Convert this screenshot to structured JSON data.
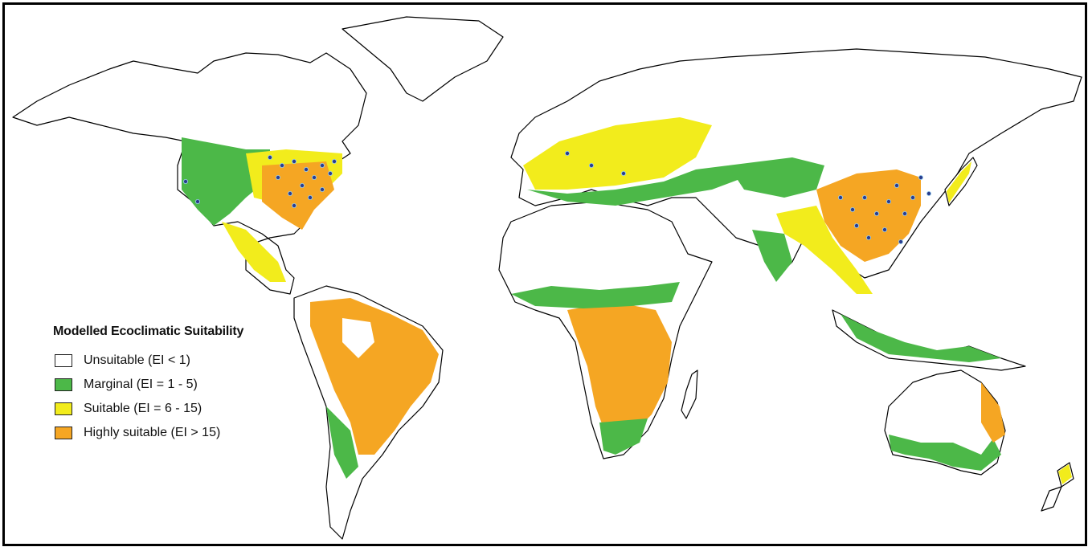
{
  "legend": {
    "title": "Modelled Ecoclimatic Suitability",
    "items": [
      {
        "label": "Unsuitable  (EI < 1)",
        "color": "#ffffff"
      },
      {
        "label": "Marginal (EI = 1 - 5)",
        "color": "#4cb848"
      },
      {
        "label": "Suitable (EI = 6 - 15)",
        "color": "#f2ec1c"
      },
      {
        "label": "Highly suitable (EI > 15)",
        "color": "#f5a623"
      }
    ]
  },
  "colors": {
    "border": "#000000",
    "occurrence_point": "#2b3d8f",
    "occurrence_outline": "#9bd1f0"
  }
}
